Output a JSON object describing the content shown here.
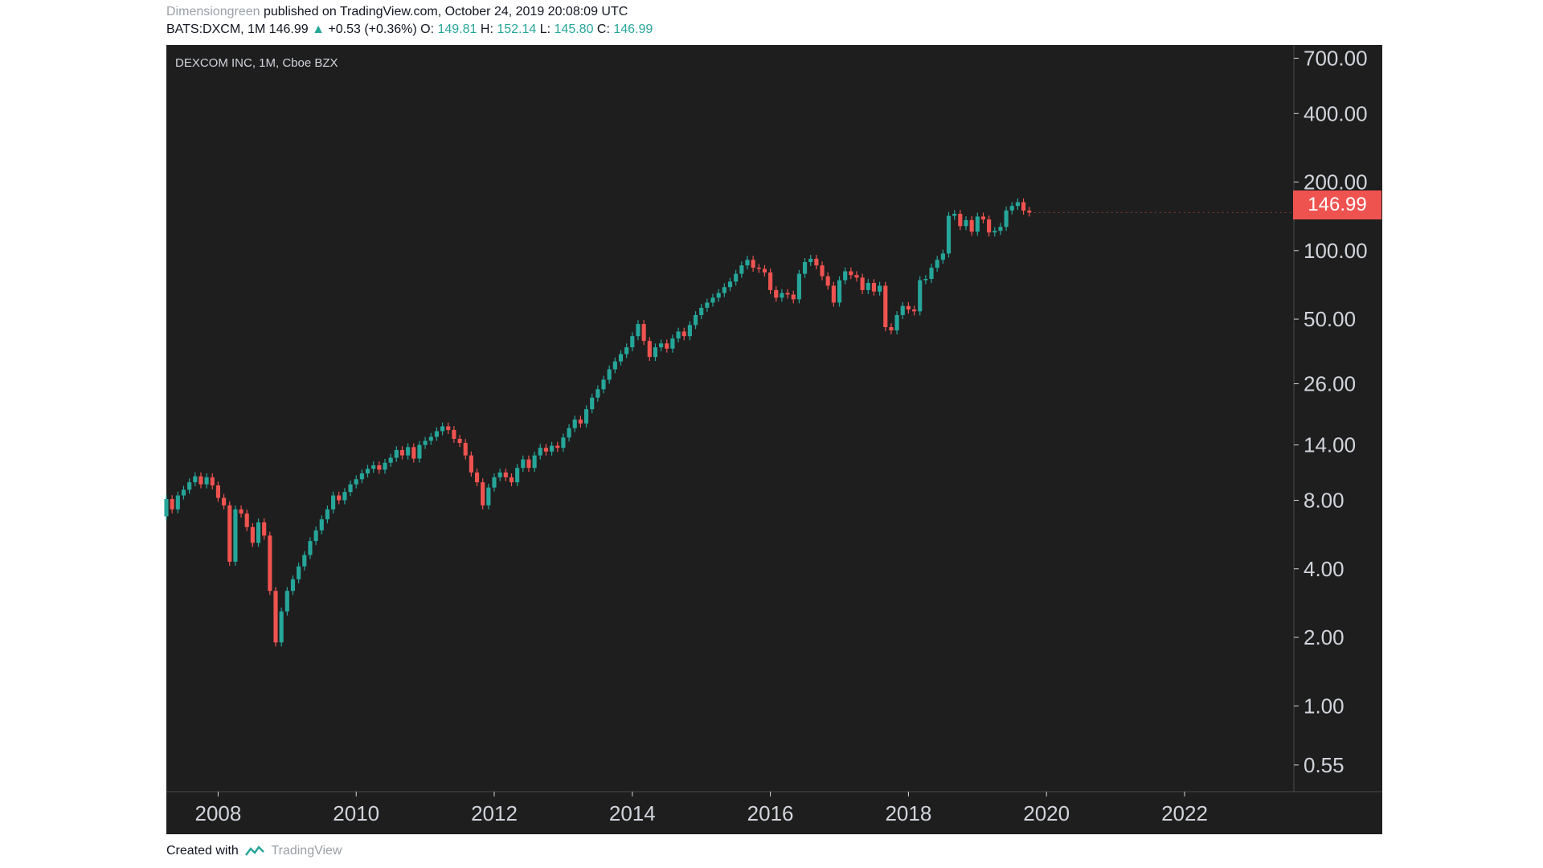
{
  "header": {
    "author": "Dimensiongreen",
    "published_text": "published on TradingView.com, October 24, 2019 20:08:09 UTC",
    "symbol_line": "BATS:DXCM, 1M 146.99",
    "change_arrow": "▲",
    "change": "+0.53 (+0.36%)",
    "o_label": "O:",
    "o_value": "149.81",
    "h_label": "H:",
    "h_value": "152.14",
    "l_label": "L:",
    "l_value": "145.80",
    "c_label": "C:",
    "c_value": "146.99"
  },
  "legend": "DEXCOM INC, 1M, Cboe BZX",
  "last_price_label": "146.99",
  "footer": {
    "created_with": "Created with",
    "brand": "TradingView"
  },
  "colors": {
    "up": "#26a69a",
    "down": "#ef5350",
    "background": "#1e1e1e",
    "axis_text": "#d1d4dc",
    "last_price": "#ef5350"
  },
  "chart_data": {
    "type": "candlestick",
    "title": "DEXCOM INC, 1M, Cboe BZX",
    "interval": "1M",
    "y_scale": "log",
    "y_ticks": [
      "700.00",
      "400.00",
      "200.00",
      "100.00",
      "50.00",
      "26.00",
      "14.00",
      "8.00",
      "4.00",
      "2.00",
      "1.00",
      "0.55"
    ],
    "x_ticks": [
      "2008",
      "2010",
      "2012",
      "2014",
      "2016",
      "2018",
      "2020",
      "2022"
    ],
    "xlim": [
      "2007-04",
      "2023-08"
    ],
    "ylim": [
      0.42,
      800
    ],
    "last_price": 146.99,
    "series": [
      {
        "values": [
          [
            "2007-04",
            6.8,
            8.1
          ],
          [
            "2007-05",
            8.1,
            7.3
          ],
          [
            "2007-06",
            7.3,
            8.4
          ],
          [
            "2007-07",
            8.4,
            8.9
          ],
          [
            "2007-08",
            8.9,
            9.6
          ],
          [
            "2007-09",
            9.6,
            10.2
          ],
          [
            "2007-10",
            10.2,
            9.4
          ],
          [
            "2007-11",
            9.4,
            10.1
          ],
          [
            "2007-12",
            10.1,
            9.3
          ],
          [
            "2008-01",
            9.3,
            8.2
          ],
          [
            "2008-02",
            8.2,
            7.6
          ],
          [
            "2008-03",
            7.6,
            4.3
          ],
          [
            "2008-04",
            4.3,
            7.3
          ],
          [
            "2008-05",
            7.3,
            7.0
          ],
          [
            "2008-06",
            7.0,
            6.1
          ],
          [
            "2008-07",
            6.1,
            5.2
          ],
          [
            "2008-08",
            5.2,
            6.4
          ],
          [
            "2008-09",
            6.4,
            5.6
          ],
          [
            "2008-10",
            5.6,
            3.2
          ],
          [
            "2008-11",
            3.2,
            1.9
          ],
          [
            "2008-12",
            1.9,
            2.6
          ],
          [
            "2009-01",
            2.6,
            3.2
          ],
          [
            "2009-02",
            3.2,
            3.6
          ],
          [
            "2009-03",
            3.6,
            4.1
          ],
          [
            "2009-04",
            4.1,
            4.6
          ],
          [
            "2009-05",
            4.6,
            5.3
          ],
          [
            "2009-06",
            5.3,
            5.9
          ],
          [
            "2009-07",
            5.9,
            6.6
          ],
          [
            "2009-08",
            6.6,
            7.3
          ],
          [
            "2009-09",
            7.3,
            8.4
          ],
          [
            "2009-10",
            8.4,
            8.0
          ],
          [
            "2009-11",
            8.0,
            8.7
          ],
          [
            "2009-12",
            8.7,
            9.4
          ],
          [
            "2010-01",
            9.4,
            9.9
          ],
          [
            "2010-02",
            9.9,
            10.5
          ],
          [
            "2010-03",
            10.5,
            11.0
          ],
          [
            "2010-04",
            11.0,
            11.4
          ],
          [
            "2010-05",
            11.4,
            10.9
          ],
          [
            "2010-06",
            10.9,
            11.7
          ],
          [
            "2010-07",
            11.7,
            12.3
          ],
          [
            "2010-08",
            12.3,
            13.3
          ],
          [
            "2010-09",
            13.3,
            12.6
          ],
          [
            "2010-10",
            12.6,
            13.7
          ],
          [
            "2010-11",
            13.7,
            12.2
          ],
          [
            "2010-12",
            12.2,
            14.0
          ],
          [
            "2011-01",
            14.0,
            14.6
          ],
          [
            "2011-02",
            14.6,
            15.2
          ],
          [
            "2011-03",
            15.2,
            16.1
          ],
          [
            "2011-04",
            16.1,
            16.9
          ],
          [
            "2011-05",
            16.9,
            16.3
          ],
          [
            "2011-06",
            16.3,
            14.9
          ],
          [
            "2011-07",
            14.9,
            14.3
          ],
          [
            "2011-08",
            14.3,
            12.6
          ],
          [
            "2011-09",
            12.6,
            10.6
          ],
          [
            "2011-10",
            10.6,
            9.6
          ],
          [
            "2011-11",
            9.6,
            7.6
          ],
          [
            "2011-12",
            7.6,
            9.1
          ],
          [
            "2012-01",
            9.1,
            10.1
          ],
          [
            "2012-02",
            10.1,
            10.6
          ],
          [
            "2012-03",
            10.6,
            10.1
          ],
          [
            "2012-04",
            10.1,
            9.6
          ],
          [
            "2012-05",
            9.6,
            11.1
          ],
          [
            "2012-06",
            11.1,
            12.1
          ],
          [
            "2012-07",
            12.1,
            11.1
          ],
          [
            "2012-08",
            11.1,
            12.6
          ],
          [
            "2012-09",
            12.6,
            13.6
          ],
          [
            "2012-10",
            13.6,
            13.1
          ],
          [
            "2012-11",
            13.1,
            13.9
          ],
          [
            "2012-12",
            13.9,
            13.6
          ],
          [
            "2013-01",
            13.6,
            15.1
          ],
          [
            "2013-02",
            15.1,
            16.6
          ],
          [
            "2013-03",
            16.6,
            18.1
          ],
          [
            "2013-04",
            18.1,
            17.4
          ],
          [
            "2013-05",
            17.4,
            20.1
          ],
          [
            "2013-06",
            20.1,
            22.6
          ],
          [
            "2013-07",
            22.6,
            24.6
          ],
          [
            "2013-08",
            24.6,
            27.1
          ],
          [
            "2013-09",
            27.1,
            30.1
          ],
          [
            "2013-10",
            30.1,
            32.6
          ],
          [
            "2013-11",
            32.6,
            35.1
          ],
          [
            "2013-12",
            35.1,
            37.6
          ],
          [
            "2014-01",
            37.6,
            42.1
          ],
          [
            "2014-02",
            42.1,
            47.6
          ],
          [
            "2014-03",
            47.6,
            40.1
          ],
          [
            "2014-04",
            40.1,
            34.1
          ],
          [
            "2014-05",
            34.1,
            37.6
          ],
          [
            "2014-06",
            37.6,
            39.1
          ],
          [
            "2014-07",
            39.1,
            37.1
          ],
          [
            "2014-08",
            37.1,
            41.1
          ],
          [
            "2014-09",
            41.1,
            44.1
          ],
          [
            "2014-10",
            44.1,
            42.1
          ],
          [
            "2014-11",
            42.1,
            47.1
          ],
          [
            "2014-12",
            47.1,
            52.1
          ],
          [
            "2015-01",
            52.1,
            56.1
          ],
          [
            "2015-02",
            56.1,
            59.1
          ],
          [
            "2015-03",
            59.1,
            62.1
          ],
          [
            "2015-04",
            62.1,
            65.1
          ],
          [
            "2015-05",
            65.1,
            69.1
          ],
          [
            "2015-06",
            69.1,
            73.1
          ],
          [
            "2015-07",
            73.1,
            79.1
          ],
          [
            "2015-08",
            79.1,
            86.1
          ],
          [
            "2015-09",
            86.1,
            91.1
          ],
          [
            "2015-10",
            91.1,
            84.1
          ],
          [
            "2015-11",
            84.1,
            83.1
          ],
          [
            "2015-12",
            83.1,
            80.1
          ],
          [
            "2016-01",
            80.1,
            67.1
          ],
          [
            "2016-02",
            67.1,
            62.1
          ],
          [
            "2016-03",
            62.1,
            65.1
          ],
          [
            "2016-04",
            65.1,
            64.1
          ],
          [
            "2016-05",
            64.1,
            61.1
          ],
          [
            "2016-06",
            61.1,
            79.1
          ],
          [
            "2016-07",
            79.1,
            89.1
          ],
          [
            "2016-08",
            89.1,
            92.1
          ],
          [
            "2016-09",
            92.1,
            86.1
          ],
          [
            "2016-10",
            86.1,
            77.1
          ],
          [
            "2016-11",
            77.1,
            70.1
          ],
          [
            "2016-12",
            70.1,
            59.1
          ],
          [
            "2017-01",
            59.1,
            74.1
          ],
          [
            "2017-02",
            74.1,
            81.1
          ],
          [
            "2017-03",
            81.1,
            78.1
          ],
          [
            "2017-04",
            78.1,
            76.1
          ],
          [
            "2017-05",
            76.1,
            67.1
          ],
          [
            "2017-06",
            67.1,
            72.1
          ],
          [
            "2017-07",
            72.1,
            66.1
          ],
          [
            "2017-08",
            66.1,
            70.1
          ],
          [
            "2017-09",
            70.1,
            46.1
          ],
          [
            "2017-10",
            46.1,
            44.6
          ],
          [
            "2017-11",
            44.6,
            52.1
          ],
          [
            "2017-12",
            52.1,
            57.1
          ],
          [
            "2018-01",
            57.1,
            55.1
          ],
          [
            "2018-02",
            55.1,
            54.1
          ],
          [
            "2018-03",
            54.1,
            74.1
          ],
          [
            "2018-04",
            74.1,
            75.1
          ],
          [
            "2018-05",
            75.1,
            84.1
          ],
          [
            "2018-06",
            84.1,
            91.1
          ],
          [
            "2018-07",
            91.1,
            97.1
          ],
          [
            "2018-08",
            97.1,
            142.1
          ],
          [
            "2018-09",
            142.1,
            145.1
          ],
          [
            "2018-10",
            145.1,
            128.1
          ],
          [
            "2018-11",
            128.1,
            136.1
          ],
          [
            "2018-12",
            136.1,
            121.1
          ],
          [
            "2019-01",
            121.1,
            141.1
          ],
          [
            "2019-02",
            141.1,
            137.1
          ],
          [
            "2019-03",
            137.1,
            120.1
          ],
          [
            "2019-04",
            120.1,
            122.1
          ],
          [
            "2019-05",
            122.1,
            127.1
          ],
          [
            "2019-06",
            127.1,
            150.1
          ],
          [
            "2019-07",
            150.1,
            157.1
          ],
          [
            "2019-08",
            157.1,
            163.1
          ],
          [
            "2019-09",
            163.1,
            149.8
          ],
          [
            "2019-10",
            149.8,
            146.99
          ]
        ]
      }
    ]
  }
}
